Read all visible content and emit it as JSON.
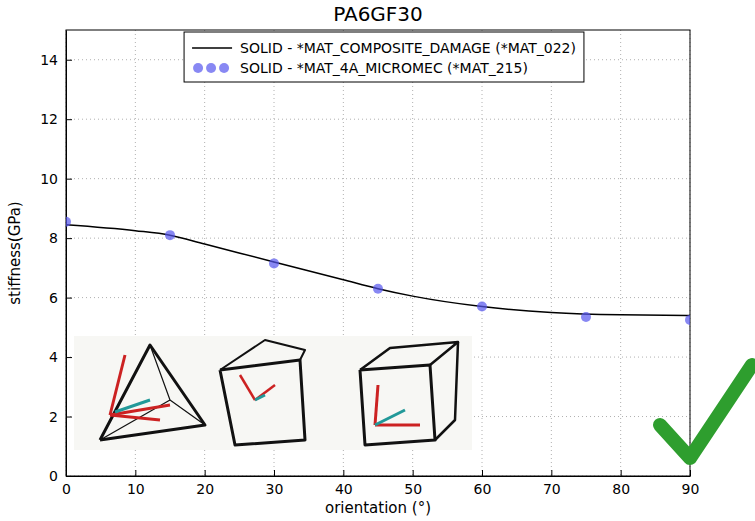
{
  "chart_data": {
    "type": "line",
    "title": "PA6GF30",
    "x_label": "orientation (°)",
    "y_label": "stiffness(GPa)",
    "xlim": [
      0,
      90
    ],
    "xticks": [
      0,
      10,
      20,
      30,
      40,
      50,
      60,
      70,
      80,
      90
    ],
    "ylim": [
      0,
      15
    ],
    "yticks": [
      0,
      2,
      4,
      6,
      8,
      10,
      12,
      14
    ],
    "grid": true,
    "legend": "top",
    "series": [
      {
        "name": "SOLID - *MAT_COMPOSITE_DAMAGE (*MAT_022)",
        "type": "line",
        "color": "#000000",
        "line_style": "solid",
        "x": [
          0,
          10,
          15,
          20,
          30,
          40,
          45,
          50,
          60,
          70,
          80,
          90
        ],
        "values": [
          8.45,
          8.25,
          8.1,
          7.8,
          7.2,
          6.6,
          6.3,
          6.05,
          5.7,
          5.5,
          5.42,
          5.4
        ]
      },
      {
        "name": "SOLID - *MAT_4A_MICROMEC (*MAT_215)",
        "type": "scatter",
        "color": "#5555ee",
        "marker": "circle",
        "x": [
          0,
          15,
          30,
          45,
          60,
          75,
          90
        ],
        "values": [
          8.55,
          8.1,
          7.15,
          6.3,
          5.7,
          5.35,
          5.25
        ]
      }
    ]
  }
}
